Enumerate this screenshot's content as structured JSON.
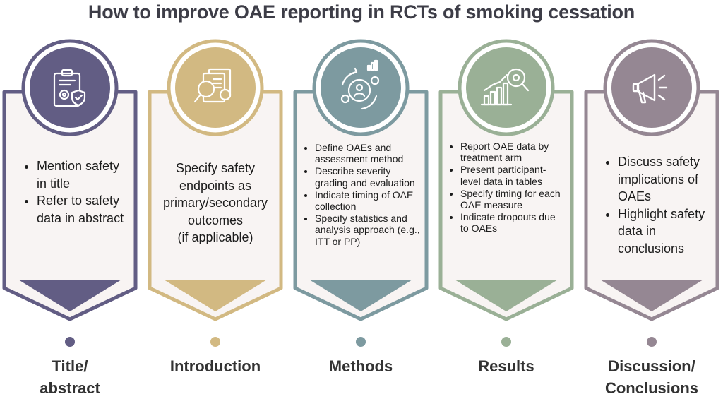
{
  "title": "How to improve OAE reporting in RCTs of smoking cessation",
  "colors": {
    "title_abstract": "#625d84",
    "introduction": "#d2b982",
    "methods": "#7d9aa0",
    "results": "#9ab096",
    "discussion": "#958793",
    "card_fill": "#f8f4f3"
  },
  "stages": [
    {
      "key": "title_abstract",
      "icon": "clipboard-gear-shield-icon",
      "label_lines": [
        "Title/",
        "abstract"
      ],
      "bullets": [
        "Mention safety in title",
        "Refer to safety data in abstract"
      ]
    },
    {
      "key": "introduction",
      "icon": "document-magnifier-icon",
      "label_lines": [
        "Introduction"
      ],
      "text_lines": [
        "Specify safety",
        "endpoints as",
        "primary/secondary",
        "outcomes",
        "(if applicable)"
      ]
    },
    {
      "key": "methods",
      "icon": "gear-user-cycle-icon",
      "label_lines": [
        "Methods"
      ],
      "bullets": [
        "Define OAEs and assessment method",
        "Describe severity grading and evaluation",
        "Indicate timing of OAE collection",
        "Specify statistics and analysis approach (e.g., ITT or PP)"
      ]
    },
    {
      "key": "results",
      "icon": "bar-chart-magnifier-icon",
      "label_lines": [
        "Results"
      ],
      "bullets": [
        "Report OAE data by treatment arm",
        "Present participant-level data in tables",
        "Specify timing for each OAE measure",
        "Indicate dropouts due to OAEs"
      ]
    },
    {
      "key": "discussion",
      "icon": "megaphone-icon",
      "label_lines": [
        "Discussion/",
        "Conclusions"
      ],
      "bullets": [
        "Discuss safety implications of OAEs",
        "Highlight safety data in conclusions"
      ]
    }
  ]
}
